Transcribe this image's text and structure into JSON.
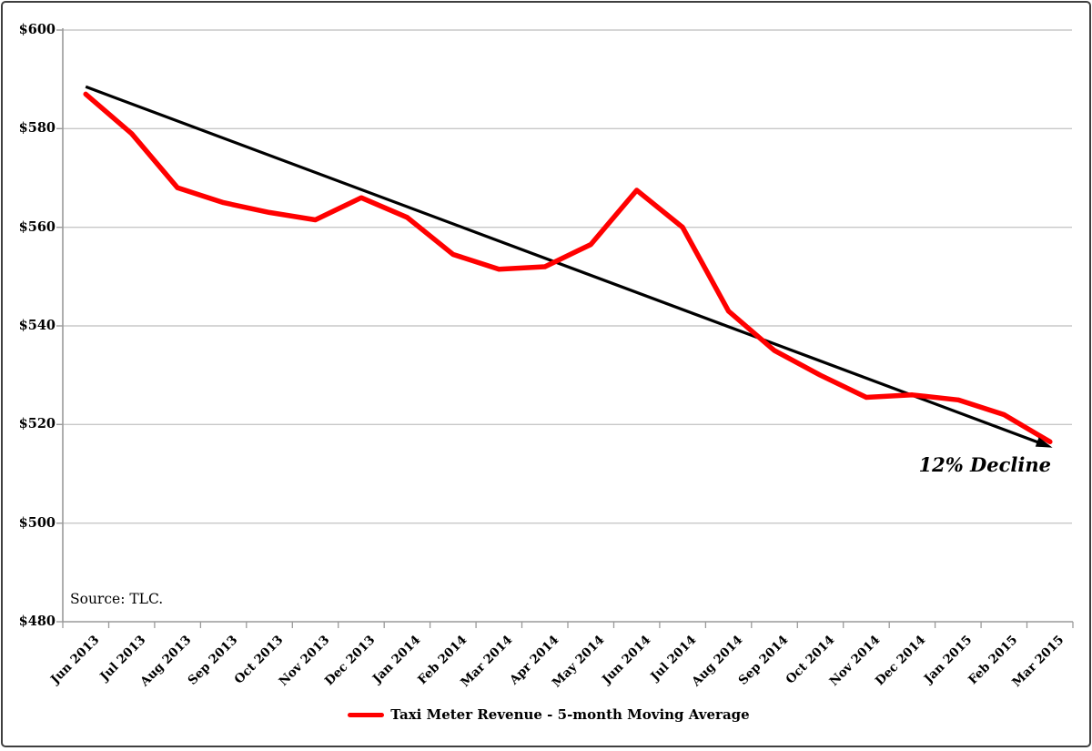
{
  "chart_data": {
    "type": "line",
    "title": "",
    "xlabel": "",
    "ylabel": "",
    "categories": [
      "Jun 2013",
      "Jul 2013",
      "Aug 2013",
      "Sep 2013",
      "Oct 2013",
      "Nov 2013",
      "Dec 2013",
      "Jan 2014",
      "Feb 2014",
      "Mar 2014",
      "Apr 2014",
      "May 2014",
      "Jun 2014",
      "Jul 2014",
      "Aug 2014",
      "Sep 2014",
      "Oct 2014",
      "Nov 2014",
      "Dec 2014",
      "Jan 2015",
      "Feb 2015",
      "Mar 2015"
    ],
    "series": [
      {
        "name": "Taxi Meter Revenue - 5-month Moving Average",
        "color": "#ff0000",
        "values": [
          587,
          579,
          568,
          565,
          563,
          561.5,
          566,
          562,
          554.5,
          551.5,
          552,
          556.5,
          567.5,
          560,
          543,
          535,
          530,
          525.5,
          526,
          525,
          522,
          516.5
        ]
      },
      {
        "name": "Linear trend",
        "color": "#000000",
        "kind": "trend",
        "start": 588.5,
        "end": 515.5,
        "arrow": true
      }
    ],
    "ylim": [
      480,
      600
    ],
    "ytick_step": 20,
    "ytick_labels": [
      "$480",
      "$500",
      "$520",
      "$540",
      "$560",
      "$580",
      "$600"
    ],
    "grid": "horizontal",
    "legend_position": "bottom",
    "annotation": "12% Decline",
    "source_note": "Source: TLC."
  },
  "colors": {
    "series_red": "#ff0000",
    "trend_black": "#000000",
    "gridline": "#c8c8c8",
    "axis": "#9a9a9a",
    "text": "#000000",
    "frame_border": "#3f3f3f"
  }
}
